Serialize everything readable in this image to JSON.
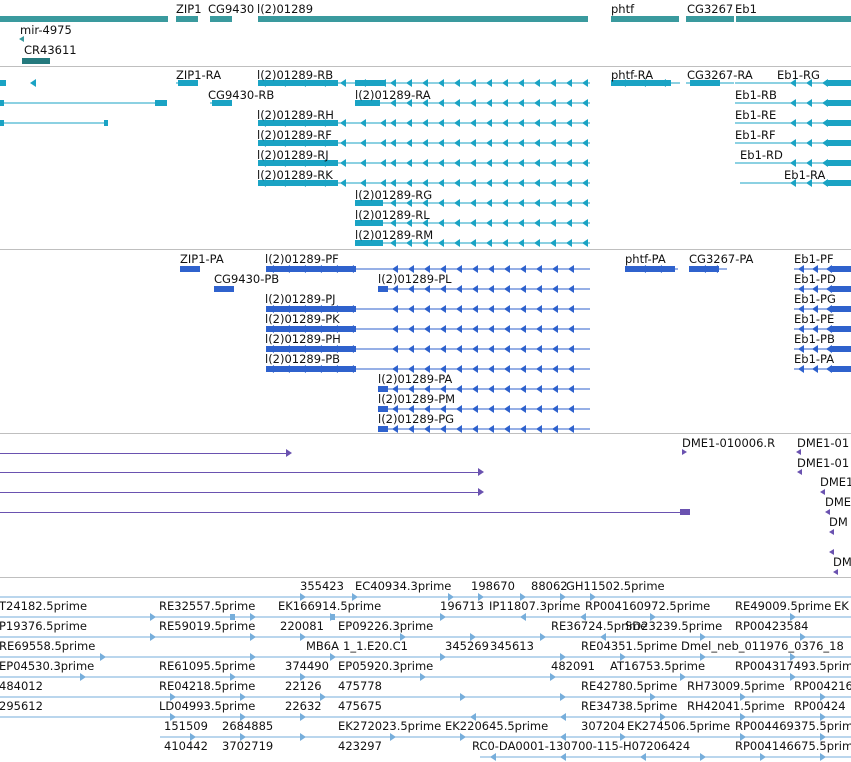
{
  "colors": {
    "gene": "#3a9a9e",
    "gene_dark": "#257a7e",
    "transcript": "#1aa3c4",
    "polypeptide": "#2f62cd",
    "alignment": "#6a52b0",
    "est": "#76aedb",
    "separator": "#bfbfbf"
  },
  "tracks": {
    "genes": {
      "labels": [
        "ZIP1",
        "CG9430",
        "l(2)01289",
        "phtf",
        "CG3267",
        "Eb1",
        "mir-4975",
        "CR43611"
      ]
    },
    "transcripts": {
      "labels": [
        "ZIP1-RA",
        "l(2)01289-RB",
        "CG9430-RB",
        "l(2)01289-RA",
        "l(2)01289-RH",
        "l(2)01289-RF",
        "l(2)01289-RJ",
        "l(2)01289-RK",
        "l(2)01289-RG",
        "l(2)01289-RL",
        "l(2)01289-RM",
        "phtf-RA",
        "CG3267-RA",
        "Eb1-RG",
        "Eb1-RB",
        "Eb1-RE",
        "Eb1-RF",
        "Eb1-RD",
        "Eb1-RA"
      ]
    },
    "polypeptides": {
      "labels": [
        "ZIP1-PA",
        "l(2)01289-PF",
        "CG9430-PB",
        "l(2)01289-PL",
        "l(2)01289-PJ",
        "l(2)01289-PK",
        "l(2)01289-PH",
        "l(2)01289-PB",
        "l(2)01289-PA",
        "l(2)01289-PM",
        "l(2)01289-PG",
        "phtf-PA",
        "CG3267-PA",
        "Eb1-PF",
        "Eb1-PD",
        "Eb1-PG",
        "Eb1-PE",
        "Eb1-PB",
        "Eb1-PA"
      ]
    },
    "alignments": {
      "labels": [
        "DME1-010006.R",
        "DME1-01",
        "DME1-01",
        "DME1",
        "DME",
        "DM",
        "DM"
      ]
    },
    "ests": {
      "labels": [
        "355423",
        "EC40934.3prime",
        "198670",
        "88062",
        "GH11502.5prime",
        "T24182.5prime",
        "RE32557.5prime",
        "EK166914.5prime",
        "196713",
        "IP11807.3prime",
        "RP004160972.5prime",
        "RE49009.5prime",
        "EK",
        "P19376.5prime",
        "RE59019.5prime",
        "220081",
        "EP09226.3prime",
        "RE36724.5prime",
        "SD23239.5prime",
        "RP00423584",
        "RE69558.5prime",
        "MB6A",
        "1_1.E20.C1",
        "345269",
        "345613",
        "RE04351.5prime",
        "Dmel_neb_011976_0376_18",
        "EP04530.3prime",
        "RE61095.5prime",
        "374490",
        "EP05920.3prime",
        "482091",
        "AT16753.5prime",
        "RP004317493.5prime",
        "484012",
        "RE04218.5prime",
        "22126",
        "475778",
        "RE42780.5prime",
        "RH73009.5prime",
        "RP004216",
        "295612",
        "LD04993.5prime",
        "22632",
        "475675",
        "RE34738.5prime",
        "RH42041.5prime",
        "RP00424",
        "151509",
        "2684885",
        "EK272023.5prime",
        "EK220645.5prime",
        "307204",
        "EK274506.5prime",
        "RP004469375.5prime",
        "410442",
        "3702719",
        "423297",
        "RC0-DA0001-130700-115-H07206424",
        "RP004146675.5prime"
      ]
    }
  }
}
